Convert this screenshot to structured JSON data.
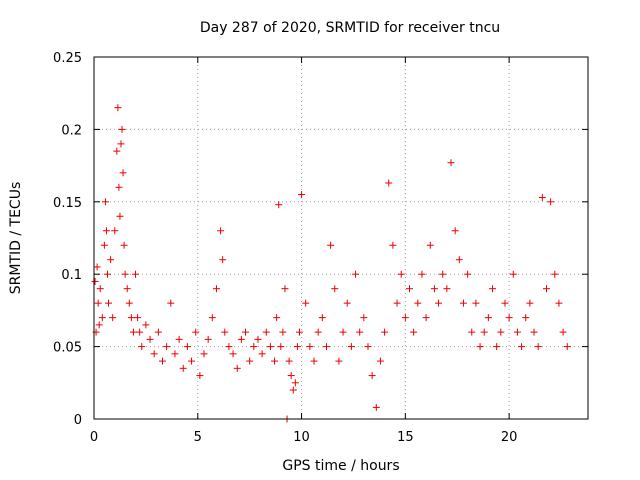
{
  "chart_data": {
    "type": "scatter",
    "title": "Day 287 of 2020, SRMTID for receiver tncu",
    "xlabel": "GPS time / hours",
    "ylabel": "SRMTID / TECUs",
    "xlim": [
      0,
      23.8
    ],
    "ylim": [
      0,
      0.25
    ],
    "xticks": [
      "0",
      "5",
      "10",
      "15",
      "20"
    ],
    "yticks": [
      "0",
      "0.05",
      "0.1",
      "0.15",
      "0.2",
      "0.25"
    ],
    "grid": true,
    "marker": "plus",
    "color": "#ee0000",
    "series": [
      {
        "x": [
          0.05,
          0.1,
          0.15,
          0.2,
          0.25,
          0.3,
          0.4,
          0.5,
          0.55,
          0.6,
          0.65,
          0.7,
          0.8,
          0.9,
          1.0,
          1.1,
          1.15,
          1.2,
          1.25,
          1.3,
          1.35,
          1.4,
          1.45,
          1.5,
          1.6,
          1.7,
          1.8,
          1.9,
          2.0,
          2.1,
          2.2,
          2.3,
          2.5,
          2.7,
          2.9,
          3.1,
          3.3,
          3.5,
          3.7,
          3.9,
          4.1,
          4.3,
          4.5,
          4.7,
          4.9,
          5.1,
          5.3,
          5.5,
          5.7,
          5.9,
          6.1,
          6.2,
          6.3,
          6.5,
          6.7,
          6.9,
          7.1,
          7.3,
          7.5,
          7.7,
          7.9,
          8.1,
          8.3,
          8.5,
          8.7,
          8.8,
          8.9,
          9.0,
          9.1,
          9.2,
          9.3,
          9.4,
          9.5,
          9.6,
          9.7,
          9.8,
          9.9,
          10.0,
          10.2,
          10.4,
          10.6,
          10.8,
          11.0,
          11.2,
          11.4,
          11.6,
          11.8,
          12.0,
          12.2,
          12.4,
          12.6,
          12.8,
          13.0,
          13.2,
          13.4,
          13.6,
          13.8,
          14.0,
          14.2,
          14.4,
          14.6,
          14.8,
          15.0,
          15.2,
          15.4,
          15.6,
          15.8,
          16.0,
          16.2,
          16.4,
          16.6,
          16.8,
          17.0,
          17.2,
          17.4,
          17.6,
          17.8,
          18.0,
          18.2,
          18.4,
          18.6,
          18.8,
          19.0,
          19.2,
          19.4,
          19.6,
          19.8,
          20.0,
          20.2,
          20.4,
          20.6,
          20.8,
          21.0,
          21.2,
          21.4,
          21.6,
          21.8,
          22.0,
          22.2,
          22.4,
          22.6,
          22.8
        ],
        "y": [
          0.095,
          0.06,
          0.105,
          0.08,
          0.065,
          0.09,
          0.07,
          0.12,
          0.15,
          0.13,
          0.1,
          0.08,
          0.11,
          0.07,
          0.13,
          0.185,
          0.215,
          0.16,
          0.14,
          0.19,
          0.2,
          0.17,
          0.12,
          0.1,
          0.09,
          0.08,
          0.07,
          0.06,
          0.1,
          0.07,
          0.06,
          0.05,
          0.065,
          0.055,
          0.045,
          0.06,
          0.04,
          0.05,
          0.08,
          0.045,
          0.055,
          0.035,
          0.05,
          0.04,
          0.06,
          0.03,
          0.045,
          0.055,
          0.07,
          0.09,
          0.13,
          0.11,
          0.06,
          0.05,
          0.045,
          0.035,
          0.055,
          0.06,
          0.04,
          0.05,
          0.055,
          0.045,
          0.06,
          0.05,
          0.04,
          0.07,
          0.148,
          0.05,
          0.06,
          0.09,
          0.0,
          0.04,
          0.03,
          0.02,
          0.025,
          0.05,
          0.06,
          0.155,
          0.08,
          0.05,
          0.04,
          0.06,
          0.07,
          0.05,
          0.12,
          0.09,
          0.04,
          0.06,
          0.08,
          0.05,
          0.1,
          0.06,
          0.07,
          0.05,
          0.03,
          0.008,
          0.04,
          0.06,
          0.163,
          0.12,
          0.08,
          0.1,
          0.07,
          0.09,
          0.06,
          0.08,
          0.1,
          0.07,
          0.12,
          0.09,
          0.08,
          0.1,
          0.09,
          0.177,
          0.13,
          0.11,
          0.08,
          0.1,
          0.06,
          0.08,
          0.05,
          0.06,
          0.07,
          0.09,
          0.05,
          0.06,
          0.08,
          0.07,
          0.1,
          0.06,
          0.05,
          0.07,
          0.08,
          0.06,
          0.05,
          0.153,
          0.09,
          0.15,
          0.1,
          0.08,
          0.06,
          0.05
        ]
      }
    ]
  }
}
